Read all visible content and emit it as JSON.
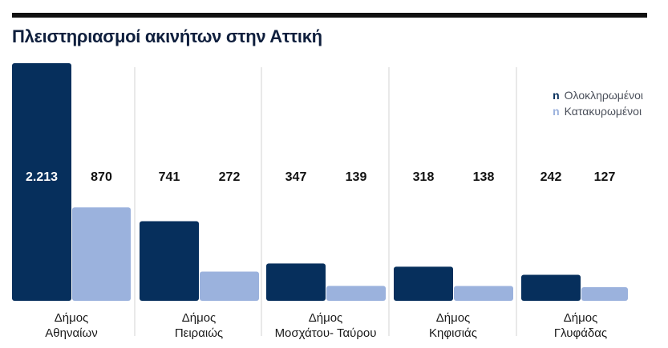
{
  "chart_data": {
    "type": "bar",
    "title": "Πλειστηριασμοί ακινήτων στην Αττική",
    "categories": [
      [
        "Δήμος",
        "Αθηναίων"
      ],
      [
        "Δήμος",
        "Πειραιώς"
      ],
      [
        "Δήμος",
        "Μοσχάτου- Ταύρου"
      ],
      [
        "Δήμος",
        "Κηφισιάς"
      ],
      [
        "Δήμος",
        "Γλυφάδας"
      ]
    ],
    "series": [
      {
        "name": "Ολοκληρωμένοι",
        "color": "#062f5c",
        "values": [
          2213,
          741,
          347,
          318,
          242
        ],
        "labels": [
          "2.213",
          "741",
          "347",
          "318",
          "242"
        ]
      },
      {
        "name": "Κατακυρωμένοι",
        "color": "#9bb2dd",
        "values": [
          870,
          272,
          139,
          138,
          127
        ],
        "labels": [
          "870",
          "272",
          "139",
          "138",
          "127"
        ]
      }
    ],
    "legend": {
      "position": "top-right",
      "marker": "n"
    },
    "ylim": [
      0,
      2213
    ],
    "grid": false,
    "separator_color": "#d3d3d3"
  }
}
